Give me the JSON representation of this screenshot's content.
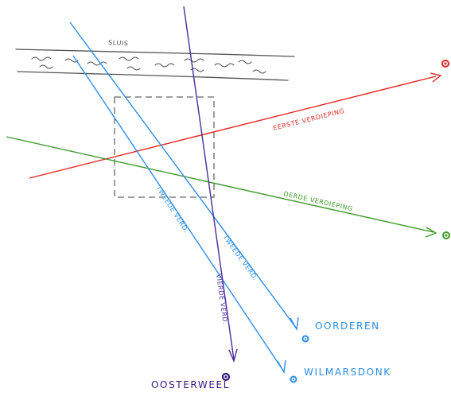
{
  "canal": {
    "label": "SLUIS"
  },
  "lines": {
    "red": {
      "label": "EERSTE VERDIEPING",
      "color": "#e0261f"
    },
    "green": {
      "label": "DERDE VERDIEPING",
      "color": "#3a9a25"
    },
    "blue_right": {
      "label": "TWEEDE VERD.",
      "color": "#2a8ee6"
    },
    "blue_left": {
      "label": "TWEEDE VERD.",
      "color": "#2a8ee6"
    },
    "purple": {
      "label": "VIERDE VERD.",
      "color": "#4a2aa0"
    }
  },
  "destinations": {
    "oorderen": {
      "label": "OORDEREN",
      "color": "#2a8ee6"
    },
    "wilmarsdonk": {
      "label": "WILMARSDONK",
      "color": "#2a8ee6"
    },
    "oosterweel": {
      "label": "OOSTERWEEL",
      "color": "#3a1a80"
    }
  },
  "colors": {
    "canal": "#555555",
    "box": "#666666"
  }
}
